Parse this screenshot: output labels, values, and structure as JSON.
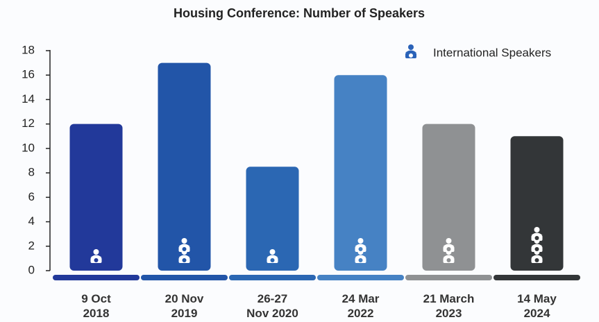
{
  "chart_data": {
    "type": "bar",
    "title": "Housing Conference: Number of Speakers",
    "categories": [
      "9 Oct\n2018",
      "20 Nov\n2019",
      "26-27\nNov 2020",
      "24 Mar\n2022",
      "21 March\n2023",
      "14 May\n2024"
    ],
    "values": [
      12,
      17,
      8.5,
      16,
      12,
      11
    ],
    "colors": [
      "#22399a",
      "#2255a8",
      "#2b67b3",
      "#4682c4",
      "#8f9193",
      "#333638"
    ],
    "icon_series": {
      "name": "International Speakers",
      "color": "#2a62b8",
      "values": [
        1,
        2,
        1,
        2,
        2,
        3
      ]
    },
    "ylim": [
      0,
      18
    ],
    "yticks": [
      0,
      2,
      4,
      6,
      8,
      10,
      12,
      14,
      16,
      18
    ],
    "legend": "upper right"
  }
}
